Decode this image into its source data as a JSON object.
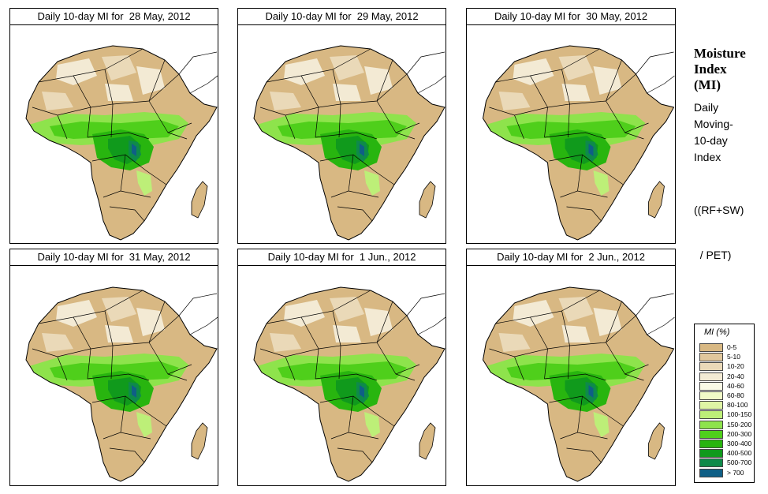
{
  "panels": [
    {
      "title": "Daily 10-day MI for  28 May, 2012"
    },
    {
      "title": "Daily 10-day MI for  29 May, 2012"
    },
    {
      "title": "Daily 10-day MI for  30 May, 2012"
    },
    {
      "title": "Daily 10-day MI for  31 May, 2012"
    },
    {
      "title": "Daily 10-day MI for  1 Jun., 2012"
    },
    {
      "title": "Daily 10-day MI for  2 Jun., 2012"
    }
  ],
  "side": {
    "title_line1": "Moisture",
    "title_line2": "Index",
    "title_line3": "(MI)",
    "desc_line1": "Daily",
    "desc_line2": "Moving-",
    "desc_line3": "10-day",
    "desc_line4": "Index",
    "formula_line1": "((RF+SW)",
    "formula_line2": "  / PET)"
  },
  "legend": {
    "title": "MI (%)",
    "items": [
      {
        "label": "0-5",
        "color": "#d8b883"
      },
      {
        "label": "5-10",
        "color": "#e1c79c"
      },
      {
        "label": "10-20",
        "color": "#ead9b8"
      },
      {
        "label": "20-40",
        "color": "#f3ead4"
      },
      {
        "label": "40-60",
        "color": "#fafae6"
      },
      {
        "label": "60-80",
        "color": "#f1fbc7"
      },
      {
        "label": "80-100",
        "color": "#dff5a5"
      },
      {
        "label": "100-150",
        "color": "#bdef78"
      },
      {
        "label": "150-200",
        "color": "#8ee34c"
      },
      {
        "label": "200-300",
        "color": "#4fcf1b"
      },
      {
        "label": "300-400",
        "color": "#28b50f"
      },
      {
        "label": "400-500",
        "color": "#109a1c"
      },
      {
        "label": "500-700",
        "color": "#0e8a4a"
      },
      {
        "label": "> 700",
        "color": "#0f5f86"
      }
    ]
  }
}
